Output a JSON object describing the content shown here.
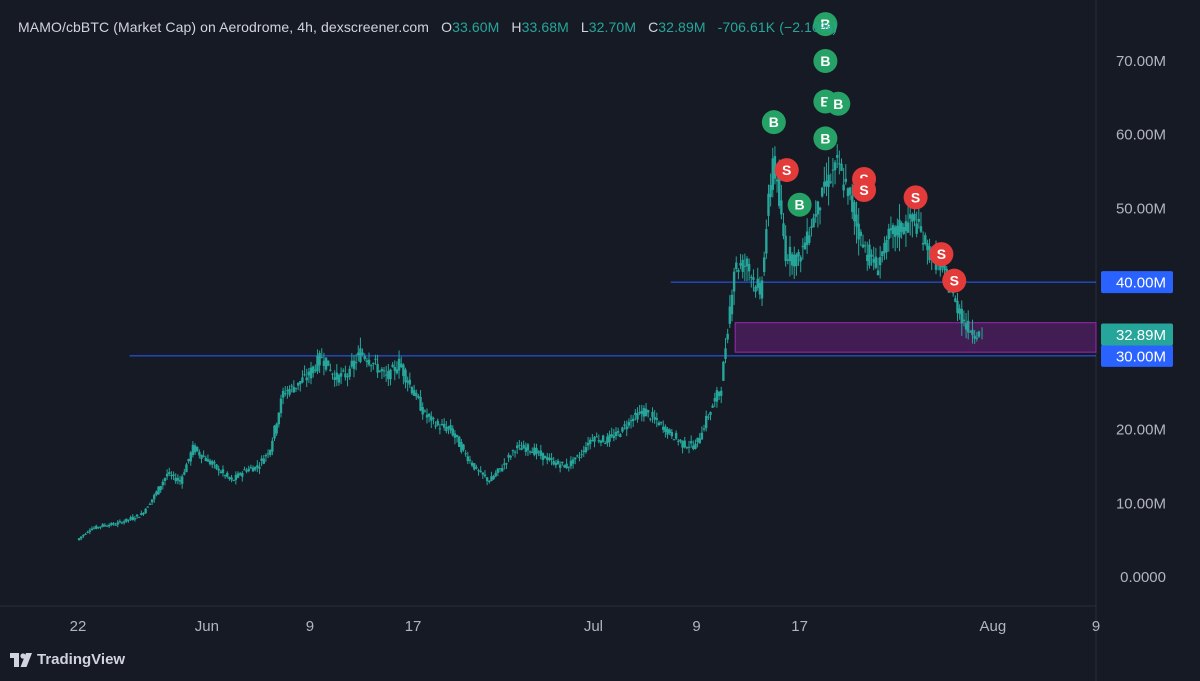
{
  "header": {
    "symbol": "MAMO/cbBTC (Market Cap) on Aerodrome, 4h, dexscreener.com",
    "o_label": "O",
    "o_value": "33.60M",
    "h_label": "H",
    "h_value": "33.68M",
    "l_label": "L",
    "l_value": "32.70M",
    "c_label": "C",
    "c_value": "32.89M",
    "change": "-706.61K (−2.10%)"
  },
  "branding": {
    "logo_text": "TradingView"
  },
  "colors": {
    "background": "#161a25",
    "candle": "#26a69a",
    "buy_marker": "#26a267",
    "sell_marker": "#e33a3a",
    "hline": "#2962ff",
    "zone_fill": "#4a1f5c",
    "zone_border": "#9c27b0",
    "price_label": "#26a69a",
    "level_label": "#2962ff",
    "axis_text": "#b2b5be"
  },
  "chart_data": {
    "type": "line",
    "title": "MAMO/cbBTC (Market Cap) on Aerodrome, 4h, dexscreener.com",
    "y_unit": "market cap (USD)",
    "ylim": [
      0,
      74000000
    ],
    "y_ticks": [
      {
        "value": 0,
        "label": "0.0000"
      },
      {
        "value": 10000000,
        "label": "10.00M"
      },
      {
        "value": 20000000,
        "label": "20.00M"
      },
      {
        "value": 50000000,
        "label": "50.00M"
      },
      {
        "value": 60000000,
        "label": "60.00M"
      },
      {
        "value": 70000000,
        "label": "70.00M"
      }
    ],
    "x_ticks": [
      {
        "date": "2025-05-22",
        "label": "22"
      },
      {
        "date": "2025-06-01",
        "label": "Jun"
      },
      {
        "date": "2025-06-09",
        "label": "9"
      },
      {
        "date": "2025-06-17",
        "label": "17"
      },
      {
        "date": "2025-07-01",
        "label": "Jul"
      },
      {
        "date": "2025-07-09",
        "label": "9"
      },
      {
        "date": "2025-07-17",
        "label": "17"
      },
      {
        "date": "2025-08-01",
        "label": "Aug"
      },
      {
        "date": "2025-08-09",
        "label": "9"
      }
    ],
    "xlim": [
      "2025-05-22",
      "2025-08-09"
    ],
    "series": [
      {
        "points": [
          [
            "2025-05-22",
            5000000
          ],
          [
            "2025-05-23",
            6500000
          ],
          [
            "2025-05-24",
            7000000
          ],
          [
            "2025-05-25",
            7200000
          ],
          [
            "2025-05-26",
            7800000
          ],
          [
            "2025-05-27",
            8500000
          ],
          [
            "2025-05-28",
            11000000
          ],
          [
            "2025-05-29",
            14000000
          ],
          [
            "2025-05-30",
            13000000
          ],
          [
            "2025-05-31",
            17500000
          ],
          [
            "2025-06-01",
            16000000
          ],
          [
            "2025-06-02",
            14500000
          ],
          [
            "2025-06-03",
            13000000
          ],
          [
            "2025-06-04",
            14500000
          ],
          [
            "2025-06-05",
            15000000
          ],
          [
            "2025-06-06",
            17500000
          ],
          [
            "2025-06-07",
            25000000
          ],
          [
            "2025-06-08",
            26000000
          ],
          [
            "2025-06-09",
            27500000
          ],
          [
            "2025-06-10",
            30000000
          ],
          [
            "2025-06-11",
            27000000
          ],
          [
            "2025-06-12",
            27500000
          ],
          [
            "2025-06-13",
            30500000
          ],
          [
            "2025-06-14",
            29000000
          ],
          [
            "2025-06-15",
            27000000
          ],
          [
            "2025-06-16",
            29000000
          ],
          [
            "2025-06-17",
            25500000
          ],
          [
            "2025-06-18",
            22000000
          ],
          [
            "2025-06-19",
            20500000
          ],
          [
            "2025-06-20",
            20000000
          ],
          [
            "2025-06-21",
            17000000
          ],
          [
            "2025-06-22",
            14500000
          ],
          [
            "2025-06-23",
            13000000
          ],
          [
            "2025-06-24",
            15000000
          ],
          [
            "2025-06-25",
            17500000
          ],
          [
            "2025-06-26",
            17500000
          ],
          [
            "2025-06-27",
            16500000
          ],
          [
            "2025-06-28",
            15500000
          ],
          [
            "2025-06-29",
            15000000
          ],
          [
            "2025-06-30",
            16500000
          ],
          [
            "2025-07-01",
            19000000
          ],
          [
            "2025-07-02",
            18500000
          ],
          [
            "2025-07-03",
            19500000
          ],
          [
            "2025-07-04",
            21500000
          ],
          [
            "2025-07-05",
            22500000
          ],
          [
            "2025-07-06",
            21000000
          ],
          [
            "2025-07-07",
            19500000
          ],
          [
            "2025-07-08",
            18000000
          ],
          [
            "2025-07-09",
            17800000
          ],
          [
            "2025-07-10",
            22000000
          ],
          [
            "2025-07-11",
            26000000
          ],
          [
            "2025-07-12",
            42000000
          ],
          [
            "2025-07-13",
            42500000
          ],
          [
            "2025-07-14",
            38000000
          ],
          [
            "2025-07-15",
            57000000
          ],
          [
            "2025-07-16",
            44000000
          ],
          [
            "2025-07-17",
            43000000
          ],
          [
            "2025-07-18",
            48000000
          ],
          [
            "2025-07-19",
            53000000
          ],
          [
            "2025-07-20",
            56000000
          ],
          [
            "2025-07-21",
            51000000
          ],
          [
            "2025-07-22",
            45000000
          ],
          [
            "2025-07-23",
            42000000
          ],
          [
            "2025-07-24",
            46000000
          ],
          [
            "2025-07-25",
            47500000
          ],
          [
            "2025-07-26",
            48500000
          ],
          [
            "2025-07-27",
            44500000
          ],
          [
            "2025-07-28",
            42000000
          ],
          [
            "2025-07-29",
            38000000
          ],
          [
            "2025-07-30",
            34000000
          ],
          [
            "2025-07-31",
            32890000
          ]
        ]
      }
    ],
    "markers": [
      {
        "type": "buy",
        "label": "B",
        "date": "2025-07-19",
        "value": 75000000
      },
      {
        "type": "buy",
        "label": "B",
        "date": "2025-07-19",
        "value": 70000000
      },
      {
        "type": "buy",
        "label": "B",
        "date": "2025-07-19",
        "value": 64500000
      },
      {
        "type": "buy",
        "label": "B",
        "date": "2025-07-20",
        "value": 64200000
      },
      {
        "type": "buy",
        "label": "B",
        "date": "2025-07-15",
        "value": 61700000
      },
      {
        "type": "buy",
        "label": "B",
        "date": "2025-07-19",
        "value": 59500000
      },
      {
        "type": "buy",
        "label": "B",
        "date": "2025-07-17",
        "value": 50500000
      },
      {
        "type": "sell",
        "label": "S",
        "date": "2025-07-16",
        "value": 55200000
      },
      {
        "type": "sell",
        "label": "S",
        "date": "2025-07-22",
        "value": 54000000
      },
      {
        "type": "sell",
        "label": "S",
        "date": "2025-07-22",
        "value": 52500000
      },
      {
        "type": "sell",
        "label": "S",
        "date": "2025-07-26",
        "value": 51500000
      },
      {
        "type": "sell",
        "label": "S",
        "date": "2025-07-28",
        "value": 43800000
      },
      {
        "type": "sell",
        "label": "S",
        "date": "2025-07-29",
        "value": 40200000
      }
    ],
    "horizontal_lines": [
      {
        "value": 40000000,
        "label": "40.00M",
        "from": "2025-07-07"
      },
      {
        "value": 30000000,
        "label": "30.00M",
        "from": "2025-05-26"
      }
    ],
    "zone": {
      "low": 30500000,
      "high": 34500000,
      "from": "2025-07-12"
    },
    "last_price": {
      "value": 32890000,
      "label": "32.89M"
    }
  }
}
